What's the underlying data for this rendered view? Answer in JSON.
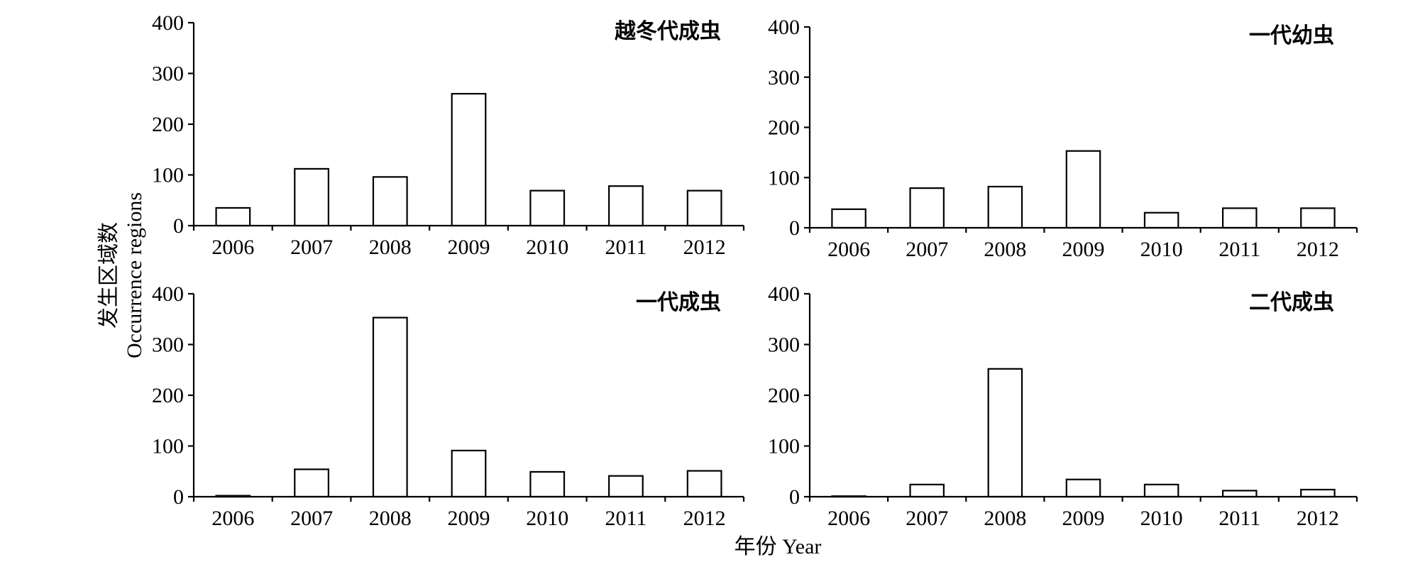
{
  "chart_data": {
    "type": "bar",
    "ylabel_cn": "发生区域数",
    "ylabel_en": "Occurrence regions",
    "xlabel": "年份 Year",
    "categories": [
      "2006",
      "2007",
      "2008",
      "2009",
      "2010",
      "2011",
      "2012"
    ],
    "yticks": [
      "0",
      "100",
      "200",
      "300",
      "400"
    ],
    "ylim": [
      0,
      400
    ],
    "grid": false,
    "bar_fill": "#ffffff",
    "bar_stroke": "#000000",
    "panels": [
      {
        "title": "越冬代成虫",
        "values": [
          35,
          112,
          96,
          260,
          69,
          78,
          69
        ]
      },
      {
        "title": "一代幼虫",
        "values": [
          37,
          79,
          82,
          153,
          30,
          39,
          39
        ]
      },
      {
        "title": "一代成虫",
        "values": [
          2,
          54,
          353,
          91,
          49,
          41,
          51
        ]
      },
      {
        "title": "二代成虫",
        "values": [
          0,
          24,
          252,
          34,
          24,
          12,
          14
        ]
      }
    ]
  }
}
